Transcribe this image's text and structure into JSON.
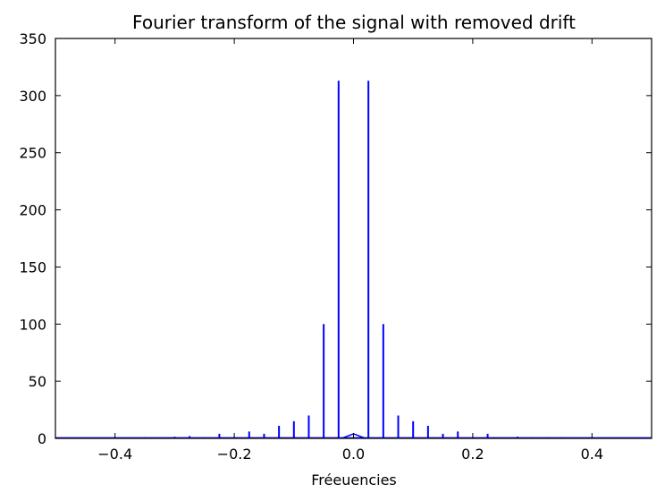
{
  "chart_data": {
    "type": "line",
    "title": "Fourier transform of the signal with removed drift",
    "xlabel": "Fréeuencies",
    "ylabel": "",
    "xlim": [
      -0.5,
      0.5
    ],
    "ylim": [
      0,
      350
    ],
    "grid": false,
    "legend": "none",
    "line_color": "#0000ff",
    "x_ticks": [
      -0.4,
      -0.2,
      0.0,
      0.2,
      0.4
    ],
    "x_tick_labels": [
      "−0.4",
      "−0.2",
      "0.0",
      "0.2",
      "0.4"
    ],
    "y_ticks": [
      0,
      50,
      100,
      150,
      200,
      250,
      300,
      350
    ],
    "y_tick_labels": [
      "0",
      "50",
      "100",
      "150",
      "200",
      "250",
      "300",
      "350"
    ],
    "series": [
      {
        "peaks": [
          {
            "x": -0.45,
            "y": 1
          },
          {
            "x": -0.4,
            "y": 1
          },
          {
            "x": -0.35,
            "y": 1
          },
          {
            "x": -0.325,
            "y": 1
          },
          {
            "x": -0.3,
            "y": 1.5
          },
          {
            "x": -0.275,
            "y": 2
          },
          {
            "x": -0.25,
            "y": 1
          },
          {
            "x": -0.225,
            "y": 4
          },
          {
            "x": -0.175,
            "y": 6
          },
          {
            "x": -0.15,
            "y": 4
          },
          {
            "x": -0.125,
            "y": 11
          },
          {
            "x": -0.1,
            "y": 15
          },
          {
            "x": -0.075,
            "y": 20
          },
          {
            "x": -0.05,
            "y": 100
          },
          {
            "x": -0.025,
            "y": 313
          },
          {
            "x": 0.025,
            "y": 313
          },
          {
            "x": 0.05,
            "y": 100
          },
          {
            "x": 0.075,
            "y": 20
          },
          {
            "x": 0.1,
            "y": 15
          },
          {
            "x": 0.125,
            "y": 11
          },
          {
            "x": 0.15,
            "y": 4
          },
          {
            "x": 0.175,
            "y": 6
          },
          {
            "x": 0.225,
            "y": 4
          },
          {
            "x": 0.25,
            "y": 1
          },
          {
            "x": 0.275,
            "y": 1.5
          },
          {
            "x": 0.3,
            "y": 1
          },
          {
            "x": 0.325,
            "y": 1
          },
          {
            "x": 0.35,
            "y": 1
          },
          {
            "x": 0.45,
            "y": 1
          }
        ],
        "center_bump": [
          {
            "x": -0.02,
            "y": 0
          },
          {
            "x": -0.01,
            "y": 2
          },
          {
            "x": 0.0,
            "y": 4
          },
          {
            "x": 0.01,
            "y": 2
          },
          {
            "x": 0.02,
            "y": 0
          }
        ]
      }
    ]
  }
}
